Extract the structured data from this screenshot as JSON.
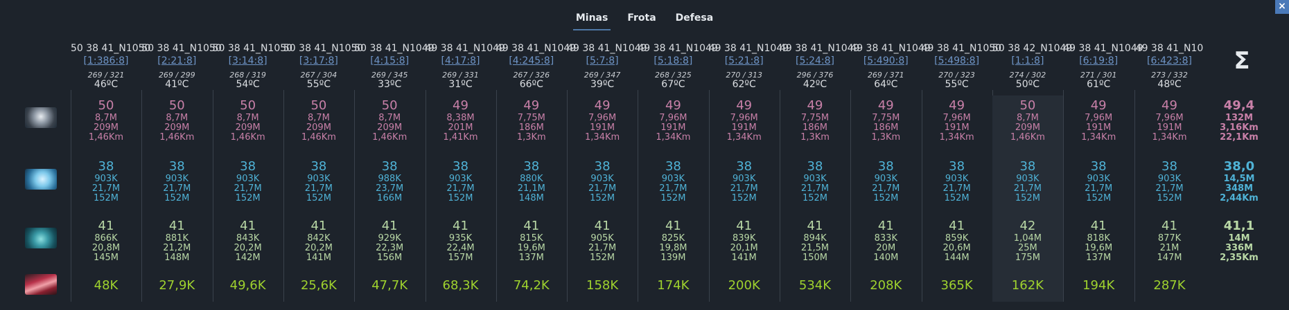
{
  "tabs": [
    "Minas",
    "Frota",
    "Defesa"
  ],
  "active_tab": "Minas",
  "close_label": "×",
  "icons": [
    "metal-icon",
    "crystal-icon",
    "deuterium-icon",
    "energy-icon"
  ],
  "colors": {
    "metal": "#c880a8",
    "crystal": "#4fb2d6",
    "deuterium": "#b9d8a6",
    "energy": "#9fd22e",
    "coords": "#6e94c6",
    "background": "#1d232b"
  },
  "columns": [
    {
      "name": "50 38 41_N1050",
      "coords": "[1:386:8]",
      "fields": "269 / 321",
      "temp": "46ºC",
      "metal": {
        "level": "50",
        "a": "8,7M",
        "b": "209M",
        "c": "1,46Km"
      },
      "crystal": {
        "level": "38",
        "a": "903K",
        "b": "21,7M",
        "c": "152M"
      },
      "deut": {
        "level": "41",
        "a": "866K",
        "b": "20,8M",
        "c": "145M"
      },
      "energy": "48K"
    },
    {
      "name": "50 38 41_N1050",
      "coords": "[2:21:8]",
      "fields": "269 / 299",
      "temp": "41ºC",
      "metal": {
        "level": "50",
        "a": "8,7M",
        "b": "209M",
        "c": "1,46Km"
      },
      "crystal": {
        "level": "38",
        "a": "903K",
        "b": "21,7M",
        "c": "152M"
      },
      "deut": {
        "level": "41",
        "a": "881K",
        "b": "21,2M",
        "c": "148M"
      },
      "energy": "27,9K"
    },
    {
      "name": "50 38 41_N1050",
      "coords": "[3:14:8]",
      "fields": "268 / 319",
      "temp": "54ºC",
      "metal": {
        "level": "50",
        "a": "8,7M",
        "b": "209M",
        "c": "1,46Km"
      },
      "crystal": {
        "level": "38",
        "a": "903K",
        "b": "21,7M",
        "c": "152M"
      },
      "deut": {
        "level": "41",
        "a": "843K",
        "b": "20,2M",
        "c": "142M"
      },
      "energy": "49,6K"
    },
    {
      "name": "50 38 41_N1050",
      "coords": "[3:17:8]",
      "fields": "267 / 304",
      "temp": "55ºC",
      "metal": {
        "level": "50",
        "a": "8,7M",
        "b": "209M",
        "c": "1,46Km"
      },
      "crystal": {
        "level": "38",
        "a": "903K",
        "b": "21,7M",
        "c": "152M"
      },
      "deut": {
        "level": "41",
        "a": "842K",
        "b": "20,2M",
        "c": "141M"
      },
      "energy": "25,6K"
    },
    {
      "name": "50 38 41_N1049",
      "coords": "[4:15:8]",
      "fields": "269 / 345",
      "temp": "33ºC",
      "metal": {
        "level": "50",
        "a": "8,7M",
        "b": "209M",
        "c": "1,46Km"
      },
      "crystal": {
        "level": "38",
        "a": "988K",
        "b": "23,7M",
        "c": "166M"
      },
      "deut": {
        "level": "41",
        "a": "929K",
        "b": "22,3M",
        "c": "156M"
      },
      "energy": "47,7K"
    },
    {
      "name": "49 38 41_N1049",
      "coords": "[4:17:8]",
      "fields": "269 / 331",
      "temp": "31ºC",
      "metal": {
        "level": "49",
        "a": "8,38M",
        "b": "201M",
        "c": "1,41Km"
      },
      "crystal": {
        "level": "38",
        "a": "903K",
        "b": "21,7M",
        "c": "152M"
      },
      "deut": {
        "level": "41",
        "a": "935K",
        "b": "22,4M",
        "c": "157M"
      },
      "energy": "68,3K"
    },
    {
      "name": "49 38 41_N1049",
      "coords": "[4:245:8]",
      "fields": "267 / 326",
      "temp": "66ºC",
      "metal": {
        "level": "49",
        "a": "7,75M",
        "b": "186M",
        "c": "1,3Km"
      },
      "crystal": {
        "level": "38",
        "a": "880K",
        "b": "21,1M",
        "c": "148M"
      },
      "deut": {
        "level": "41",
        "a": "815K",
        "b": "19,6M",
        "c": "137M"
      },
      "energy": "74,2K"
    },
    {
      "name": "49 38 41_N1049",
      "coords": "[5:7:8]",
      "fields": "269 / 347",
      "temp": "39ºC",
      "metal": {
        "level": "49",
        "a": "7,96M",
        "b": "191M",
        "c": "1,34Km"
      },
      "crystal": {
        "level": "38",
        "a": "903K",
        "b": "21,7M",
        "c": "152M"
      },
      "deut": {
        "level": "41",
        "a": "905K",
        "b": "21,7M",
        "c": "152M"
      },
      "energy": "158K"
    },
    {
      "name": "49 38 41_N1049",
      "coords": "[5:18:8]",
      "fields": "268 / 325",
      "temp": "67ºC",
      "metal": {
        "level": "49",
        "a": "7,96M",
        "b": "191M",
        "c": "1,34Km"
      },
      "crystal": {
        "level": "38",
        "a": "903K",
        "b": "21,7M",
        "c": "152M"
      },
      "deut": {
        "level": "41",
        "a": "825K",
        "b": "19,8M",
        "c": "139M"
      },
      "energy": "174K"
    },
    {
      "name": "49 38 41_N1049",
      "coords": "[5:21:8]",
      "fields": "270 / 313",
      "temp": "62ºC",
      "metal": {
        "level": "49",
        "a": "7,96M",
        "b": "191M",
        "c": "1,34Km"
      },
      "crystal": {
        "level": "38",
        "a": "903K",
        "b": "21,7M",
        "c": "152M"
      },
      "deut": {
        "level": "41",
        "a": "839K",
        "b": "20,1M",
        "c": "141M"
      },
      "energy": "200K"
    },
    {
      "name": "49 38 41_N1049",
      "coords": "[5:24:8]",
      "fields": "296 / 376",
      "temp": "42ºC",
      "metal": {
        "level": "49",
        "a": "7,75M",
        "b": "186M",
        "c": "1,3Km"
      },
      "crystal": {
        "level": "38",
        "a": "903K",
        "b": "21,7M",
        "c": "152M"
      },
      "deut": {
        "level": "41",
        "a": "894K",
        "b": "21,5M",
        "c": "150M"
      },
      "energy": "534K"
    },
    {
      "name": "49 38 41_N1049",
      "coords": "[5:490:8]",
      "fields": "269 / 371",
      "temp": "64ºC",
      "metal": {
        "level": "49",
        "a": "7,75M",
        "b": "186M",
        "c": "1,3Km"
      },
      "crystal": {
        "level": "38",
        "a": "903K",
        "b": "21,7M",
        "c": "152M"
      },
      "deut": {
        "level": "41",
        "a": "833K",
        "b": "20M",
        "c": "140M"
      },
      "energy": "208K"
    },
    {
      "name": "49 38 41_N1050",
      "coords": "[5:498:8]",
      "fields": "270 / 323",
      "temp": "55ºC",
      "metal": {
        "level": "49",
        "a": "7,96M",
        "b": "191M",
        "c": "1,34Km"
      },
      "crystal": {
        "level": "38",
        "a": "903K",
        "b": "21,7M",
        "c": "152M"
      },
      "deut": {
        "level": "41",
        "a": "859K",
        "b": "20,6M",
        "c": "144M"
      },
      "energy": "365K"
    },
    {
      "name": "50 38 42_N1049",
      "coords": "[1:1:8]",
      "fields": "274 / 302",
      "temp": "50ºC",
      "metal": {
        "level": "50",
        "a": "8,7M",
        "b": "209M",
        "c": "1,46Km"
      },
      "crystal": {
        "level": "38",
        "a": "903K",
        "b": "21,7M",
        "c": "152M"
      },
      "deut": {
        "level": "42",
        "a": "1,04M",
        "b": "25M",
        "c": "175M"
      },
      "energy": "162K",
      "selected": true
    },
    {
      "name": "49 38 41_N1049",
      "coords": "[6:19:8]",
      "fields": "271 / 301",
      "temp": "61ºC",
      "metal": {
        "level": "49",
        "a": "7,96M",
        "b": "191M",
        "c": "1,34Km"
      },
      "crystal": {
        "level": "38",
        "a": "903K",
        "b": "21,7M",
        "c": "152M"
      },
      "deut": {
        "level": "41",
        "a": "818K",
        "b": "19,6M",
        "c": "137M"
      },
      "energy": "194K"
    },
    {
      "name": "49 38 41_N10",
      "coords": "[6:423:8]",
      "fields": "273 / 332",
      "temp": "48ºC",
      "metal": {
        "level": "49",
        "a": "7,96M",
        "b": "191M",
        "c": "1,34Km"
      },
      "crystal": {
        "level": "38",
        "a": "903K",
        "b": "21,7M",
        "c": "152M"
      },
      "deut": {
        "level": "41",
        "a": "877K",
        "b": "21M",
        "c": "147M"
      },
      "energy": "287K"
    }
  ],
  "summary": {
    "symbol": "Σ",
    "metal": {
      "level": "49,4",
      "a": "132M",
      "b": "3,16Km",
      "c": "22,1Km"
    },
    "crystal": {
      "level": "38,0",
      "a": "14,5M",
      "b": "348M",
      "c": "2,44Km"
    },
    "deut": {
      "level": "41,1",
      "a": "14M",
      "b": "336M",
      "c": "2,35Km"
    }
  }
}
